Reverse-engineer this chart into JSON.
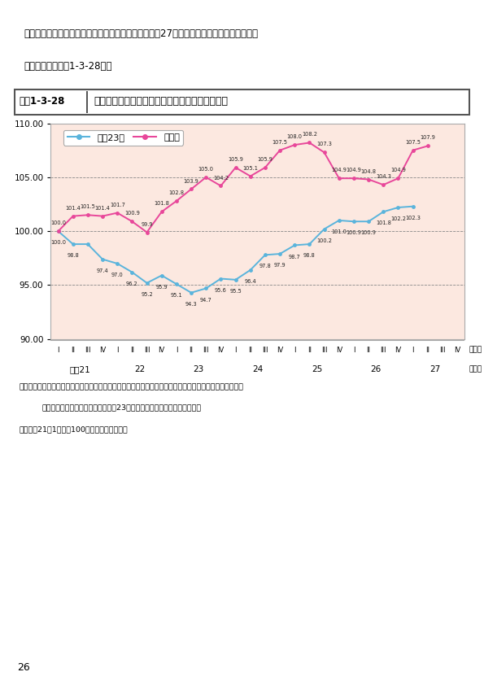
{
  "title_box_label": "図表1-3-28",
  "title_text": "東京都区部・大阪市のマンション賃料指数の推移",
  "intro_line1": "　賃貸マンションの賃料指数の推移については、平成27年度は、東京都区部、大阪市とも",
  "intro_line2": "に上昇した（図表1-3-28）。",
  "legend_tokyo": "東京23区",
  "legend_osaka": "大阪市",
  "color_tokyo": "#5ab4dc",
  "color_osaka": "#e8479a",
  "bg_color": "#fce8e0",
  "ylim": [
    90.0,
    110.0
  ],
  "yticks": [
    90.0,
    95.0,
    100.0,
    105.0,
    110.0
  ],
  "tokyo_x": [
    0,
    1,
    2,
    3,
    4,
    5,
    6,
    7,
    8,
    9,
    10,
    11,
    12,
    13,
    14,
    15,
    16,
    17,
    18,
    19,
    20,
    21,
    22,
    23,
    24
  ],
  "tokyo_y": [
    100.0,
    98.8,
    98.8,
    97.4,
    97.0,
    96.2,
    95.2,
    95.9,
    95.1,
    94.3,
    94.7,
    95.6,
    95.5,
    96.4,
    97.8,
    97.9,
    98.7,
    98.8,
    100.2,
    101.0,
    100.9,
    100.9,
    101.8,
    102.2,
    102.3
  ],
  "osaka_x": [
    0,
    1,
    2,
    3,
    4,
    5,
    6,
    7,
    8,
    9,
    10,
    11,
    12,
    13,
    14,
    15,
    16,
    17,
    18,
    19,
    20,
    21,
    22,
    23,
    24,
    25
  ],
  "osaka_y": [
    100.0,
    101.4,
    101.5,
    101.4,
    101.7,
    100.9,
    99.9,
    101.8,
    102.8,
    103.9,
    105.0,
    104.2,
    105.9,
    105.1,
    105.9,
    107.5,
    108.0,
    108.2,
    107.3,
    104.9,
    104.9,
    104.8,
    104.3,
    104.9,
    107.5,
    107.9
  ],
  "tokyo_labels": [
    100.0,
    98.8,
    null,
    97.4,
    97.0,
    96.2,
    95.2,
    95.9,
    95.1,
    94.3,
    94.7,
    95.6,
    95.5,
    96.4,
    97.8,
    97.9,
    98.7,
    98.8,
    100.2,
    101.0,
    100.9,
    100.9,
    101.8,
    102.2,
    102.3
  ],
  "osaka_labels": [
    100.0,
    101.4,
    101.5,
    101.4,
    101.7,
    100.9,
    99.9,
    101.8,
    102.8,
    103.9,
    105.0,
    104.2,
    105.9,
    105.1,
    105.9,
    107.5,
    108.0,
    108.2,
    107.3,
    104.9,
    104.9,
    104.8,
    104.3,
    104.9,
    107.5,
    107.9
  ],
  "n_quarters": 28,
  "period_labels": [
    "I",
    "II",
    "III",
    "IV",
    "I",
    "II",
    "III",
    "IV",
    "I",
    "II",
    "III",
    "IV",
    "I",
    "II",
    "III",
    "IV",
    "I",
    "II",
    "III",
    "IV",
    "I",
    "II",
    "III",
    "IV",
    "I",
    "II",
    "III",
    "IV"
  ],
  "year_positions": [
    1.5,
    5.5,
    9.5,
    13.5,
    17.5,
    21.5,
    25.5
  ],
  "year_labels": [
    "平成21",
    "22",
    "23",
    "24",
    "25",
    "26",
    "27"
  ],
  "source1": "資料：「マンション賮料インデックス（アットホーム（株）、（株）三井住友トラスト基瞒研究所）頊賌型",
  "source2": "（部屋タイプ：総合、エリア：東京23区・大阪市）」より国土交通省作成",
  "note": "注：平成21年1月期を100とした指数値である"
}
